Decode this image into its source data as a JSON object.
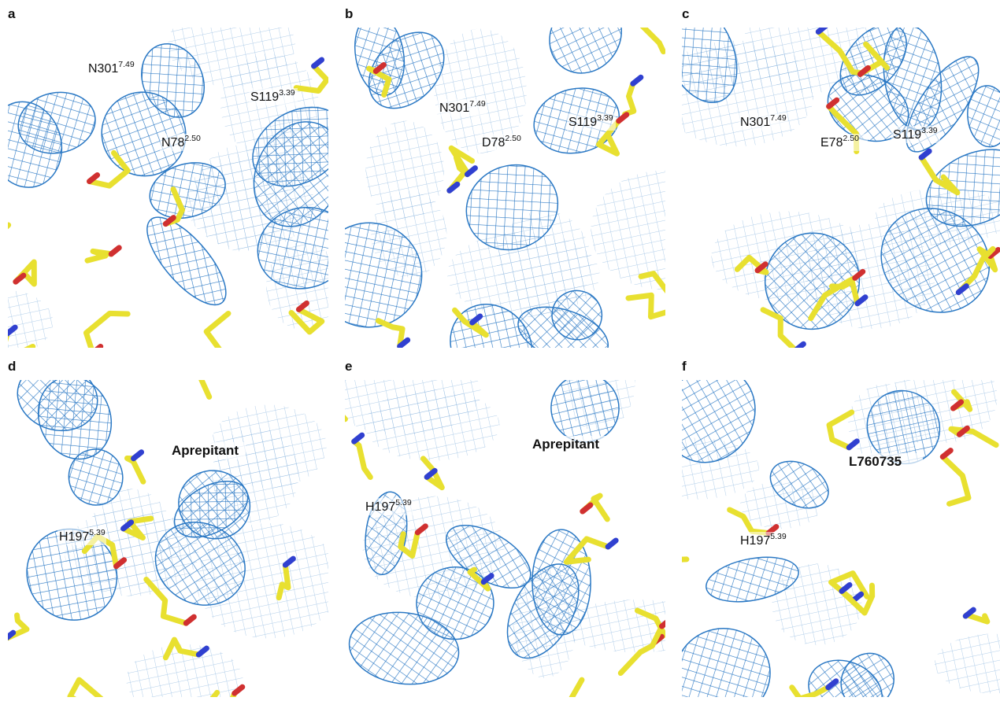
{
  "panels": [
    {
      "label": "a",
      "annotations": [
        {
          "text": "N301",
          "sup": "7.49"
        },
        {
          "text": "S119",
          "sup": "3.39"
        },
        {
          "text": "N78",
          "sup": "2.50"
        }
      ]
    },
    {
      "label": "b",
      "annotations": [
        {
          "text": "N301",
          "sup": "7.49"
        },
        {
          "text": "S119",
          "sup": "3.39"
        },
        {
          "text": "D78",
          "sup": "2.50"
        }
      ]
    },
    {
      "label": "c",
      "annotations": [
        {
          "text": "N301",
          "sup": "7.49"
        },
        {
          "text": "E78",
          "sup": "2.50"
        },
        {
          "text": "S119",
          "sup": "3.39"
        }
      ]
    },
    {
      "label": "d",
      "ligand": "Aprepitant",
      "annotations": [
        {
          "text": "H197",
          "sup": "5.39"
        }
      ]
    },
    {
      "label": "e",
      "ligand": "Aprepitant",
      "annotations": [
        {
          "text": "H197",
          "sup": "5.39"
        }
      ]
    },
    {
      "label": "f",
      "ligand": "L760735",
      "annotations": [
        {
          "text": "H197",
          "sup": "5.39"
        }
      ]
    }
  ]
}
